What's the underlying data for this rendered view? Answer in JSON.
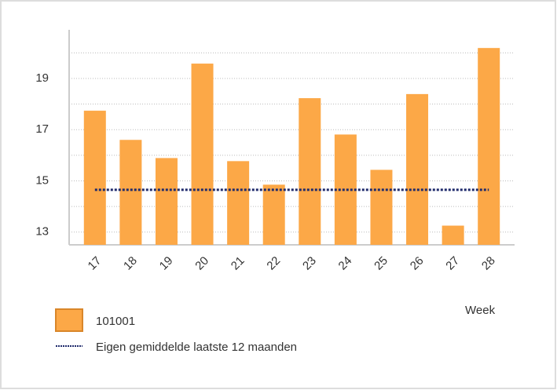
{
  "chart_data": {
    "type": "bar",
    "x_label": "Week",
    "categories": [
      "17",
      "18",
      "19",
      "20",
      "21",
      "22",
      "23",
      "24",
      "25",
      "26",
      "27",
      "28"
    ],
    "series": [
      {
        "name": "101001",
        "type": "bar",
        "color": "#fca847",
        "values": [
          17.74,
          16.6,
          15.89,
          19.58,
          15.77,
          14.85,
          18.23,
          16.81,
          15.43,
          18.39,
          13.25,
          20.19
        ]
      },
      {
        "name": "Eigen gemiddelde laatste 12 maanden",
        "type": "line",
        "color": "#1f2a6b",
        "values": [
          14.65,
          14.65,
          14.65,
          14.65,
          14.65,
          14.65,
          14.65,
          14.65,
          14.65,
          14.65,
          14.65,
          14.65
        ]
      }
    ],
    "ylim": [
      12.5,
      20.9
    ],
    "yticks": [
      13,
      15,
      17,
      19
    ],
    "minor_yticks": [
      14,
      16,
      18,
      20
    ],
    "grid": true
  }
}
